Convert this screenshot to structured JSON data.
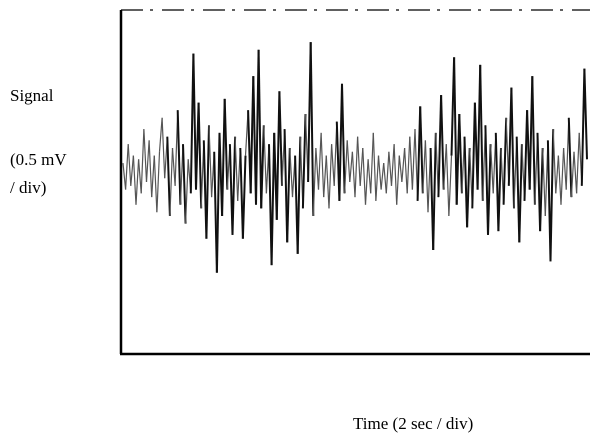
{
  "chart_data": {
    "type": "line",
    "ylabel_lines": [
      "Signal",
      "(0.5 mV",
      "/ div)"
    ],
    "xlabel": "Time (2 sec / div)",
    "xlim": [
      0,
      14.3
    ],
    "ylim": [
      -2.4,
      2.1
    ],
    "grid": false,
    "series": [
      {
        "values": [
          [
            0.0,
            0.1
          ],
          [
            0.08,
            -0.25
          ],
          [
            0.16,
            0.35
          ],
          [
            0.24,
            -0.2
          ],
          [
            0.32,
            0.2
          ],
          [
            0.4,
            -0.45
          ],
          [
            0.48,
            0.15
          ],
          [
            0.56,
            -0.3
          ],
          [
            0.64,
            0.55
          ],
          [
            0.72,
            -0.15
          ],
          [
            0.8,
            0.4
          ],
          [
            0.88,
            -0.35
          ],
          [
            0.96,
            0.2
          ],
          [
            1.04,
            -0.55
          ],
          [
            1.12,
            0.25
          ],
          [
            1.2,
            0.7
          ],
          [
            1.28,
            -0.1
          ],
          [
            1.36,
            0.45
          ],
          [
            1.44,
            -0.6
          ],
          [
            1.52,
            0.3
          ],
          [
            1.6,
            -0.2
          ],
          [
            1.68,
            0.8
          ],
          [
            1.76,
            -0.45
          ],
          [
            1.84,
            0.35
          ],
          [
            1.92,
            -0.7
          ],
          [
            2.0,
            0.15
          ],
          [
            2.08,
            -0.3
          ],
          [
            2.16,
            1.55
          ],
          [
            2.24,
            -0.25
          ],
          [
            2.32,
            0.9
          ],
          [
            2.4,
            -0.5
          ],
          [
            2.48,
            0.4
          ],
          [
            2.56,
            -0.9
          ],
          [
            2.64,
            0.6
          ],
          [
            2.72,
            -0.35
          ],
          [
            2.8,
            0.25
          ],
          [
            2.88,
            -1.35
          ],
          [
            2.96,
            0.5
          ],
          [
            3.04,
            -0.6
          ],
          [
            3.12,
            0.95
          ],
          [
            3.2,
            -0.25
          ],
          [
            3.28,
            0.35
          ],
          [
            3.36,
            -0.85
          ],
          [
            3.44,
            0.45
          ],
          [
            3.52,
            -0.4
          ],
          [
            3.6,
            0.3
          ],
          [
            3.68,
            -0.9
          ],
          [
            3.76,
            0.2
          ],
          [
            3.84,
            0.8
          ],
          [
            3.92,
            -0.3
          ],
          [
            4.0,
            1.25
          ],
          [
            4.08,
            -0.45
          ],
          [
            4.16,
            1.6
          ],
          [
            4.24,
            -0.5
          ],
          [
            4.32,
            0.6
          ],
          [
            4.4,
            -0.3
          ],
          [
            4.48,
            0.35
          ],
          [
            4.56,
            -1.25
          ],
          [
            4.64,
            0.5
          ],
          [
            4.72,
            -0.65
          ],
          [
            4.8,
            1.05
          ],
          [
            4.88,
            -0.2
          ],
          [
            4.96,
            0.55
          ],
          [
            5.04,
            -0.95
          ],
          [
            5.12,
            0.3
          ],
          [
            5.2,
            -0.35
          ],
          [
            5.28,
            0.2
          ],
          [
            5.36,
            -1.1
          ],
          [
            5.44,
            0.45
          ],
          [
            5.52,
            -0.5
          ],
          [
            5.6,
            0.75
          ],
          [
            5.68,
            -0.15
          ],
          [
            5.76,
            1.7
          ],
          [
            5.84,
            -0.6
          ],
          [
            5.92,
            0.3
          ],
          [
            6.0,
            -0.25
          ],
          [
            6.08,
            0.5
          ],
          [
            6.16,
            -0.35
          ],
          [
            6.24,
            0.2
          ],
          [
            6.32,
            -0.5
          ],
          [
            6.4,
            0.35
          ],
          [
            6.48,
            -0.2
          ],
          [
            6.56,
            0.65
          ],
          [
            6.64,
            -0.4
          ],
          [
            6.72,
            1.15
          ],
          [
            6.8,
            -0.3
          ],
          [
            6.88,
            0.4
          ],
          [
            6.96,
            -0.15
          ],
          [
            7.04,
            0.25
          ],
          [
            7.12,
            -0.35
          ],
          [
            7.2,
            0.45
          ],
          [
            7.28,
            -0.2
          ],
          [
            7.36,
            0.3
          ],
          [
            7.44,
            -0.45
          ],
          [
            7.52,
            0.15
          ],
          [
            7.6,
            -0.3
          ],
          [
            7.68,
            0.5
          ],
          [
            7.76,
            -0.4
          ],
          [
            7.84,
            0.2
          ],
          [
            7.92,
            -0.25
          ],
          [
            8.0,
            0.1
          ],
          [
            8.08,
            -0.3
          ],
          [
            8.16,
            0.25
          ],
          [
            8.24,
            -0.2
          ],
          [
            8.32,
            0.35
          ],
          [
            8.4,
            -0.45
          ],
          [
            8.48,
            0.2
          ],
          [
            8.56,
            -0.15
          ],
          [
            8.64,
            0.3
          ],
          [
            8.72,
            -0.3
          ],
          [
            8.8,
            0.45
          ],
          [
            8.88,
            -0.25
          ],
          [
            8.96,
            0.55
          ],
          [
            9.04,
            -0.4
          ],
          [
            9.12,
            0.85
          ],
          [
            9.2,
            -0.3
          ],
          [
            9.28,
            0.4
          ],
          [
            9.36,
            -0.55
          ],
          [
            9.44,
            0.3
          ],
          [
            9.52,
            -1.05
          ],
          [
            9.6,
            0.5
          ],
          [
            9.68,
            -0.35
          ],
          [
            9.76,
            1.0
          ],
          [
            9.84,
            -0.25
          ],
          [
            9.92,
            0.35
          ],
          [
            10.0,
            -0.6
          ],
          [
            10.08,
            0.2
          ],
          [
            10.16,
            1.5
          ],
          [
            10.24,
            -0.45
          ],
          [
            10.32,
            0.75
          ],
          [
            10.4,
            -0.3
          ],
          [
            10.48,
            0.45
          ],
          [
            10.56,
            -0.75
          ],
          [
            10.64,
            0.3
          ],
          [
            10.72,
            -0.5
          ],
          [
            10.8,
            0.9
          ],
          [
            10.88,
            -0.25
          ],
          [
            10.96,
            1.4
          ],
          [
            11.04,
            -0.4
          ],
          [
            11.12,
            0.6
          ],
          [
            11.2,
            -0.85
          ],
          [
            11.28,
            0.35
          ],
          [
            11.36,
            -0.3
          ],
          [
            11.44,
            0.5
          ],
          [
            11.52,
            -0.8
          ],
          [
            11.6,
            0.3
          ],
          [
            11.68,
            -0.45
          ],
          [
            11.76,
            0.7
          ],
          [
            11.84,
            -0.2
          ],
          [
            11.92,
            1.1
          ],
          [
            12.0,
            -0.5
          ],
          [
            12.08,
            0.45
          ],
          [
            12.16,
            -0.95
          ],
          [
            12.24,
            0.35
          ],
          [
            12.32,
            -0.4
          ],
          [
            12.4,
            0.8
          ],
          [
            12.48,
            -0.25
          ],
          [
            12.56,
            1.25
          ],
          [
            12.64,
            -0.45
          ],
          [
            12.72,
            0.5
          ],
          [
            12.8,
            -0.8
          ],
          [
            12.88,
            0.3
          ],
          [
            12.96,
            -0.6
          ],
          [
            13.04,
            0.4
          ],
          [
            13.12,
            -1.2
          ],
          [
            13.2,
            0.55
          ],
          [
            13.28,
            -0.3
          ],
          [
            13.36,
            0.2
          ],
          [
            13.44,
            -0.45
          ],
          [
            13.52,
            0.3
          ],
          [
            13.6,
            -0.25
          ],
          [
            13.68,
            0.7
          ],
          [
            13.76,
            -0.35
          ],
          [
            13.84,
            0.25
          ],
          [
            13.92,
            -0.3
          ],
          [
            14.0,
            0.5
          ],
          [
            14.08,
            -0.2
          ],
          [
            14.16,
            1.35
          ],
          [
            14.24,
            0.15
          ]
        ]
      }
    ]
  }
}
